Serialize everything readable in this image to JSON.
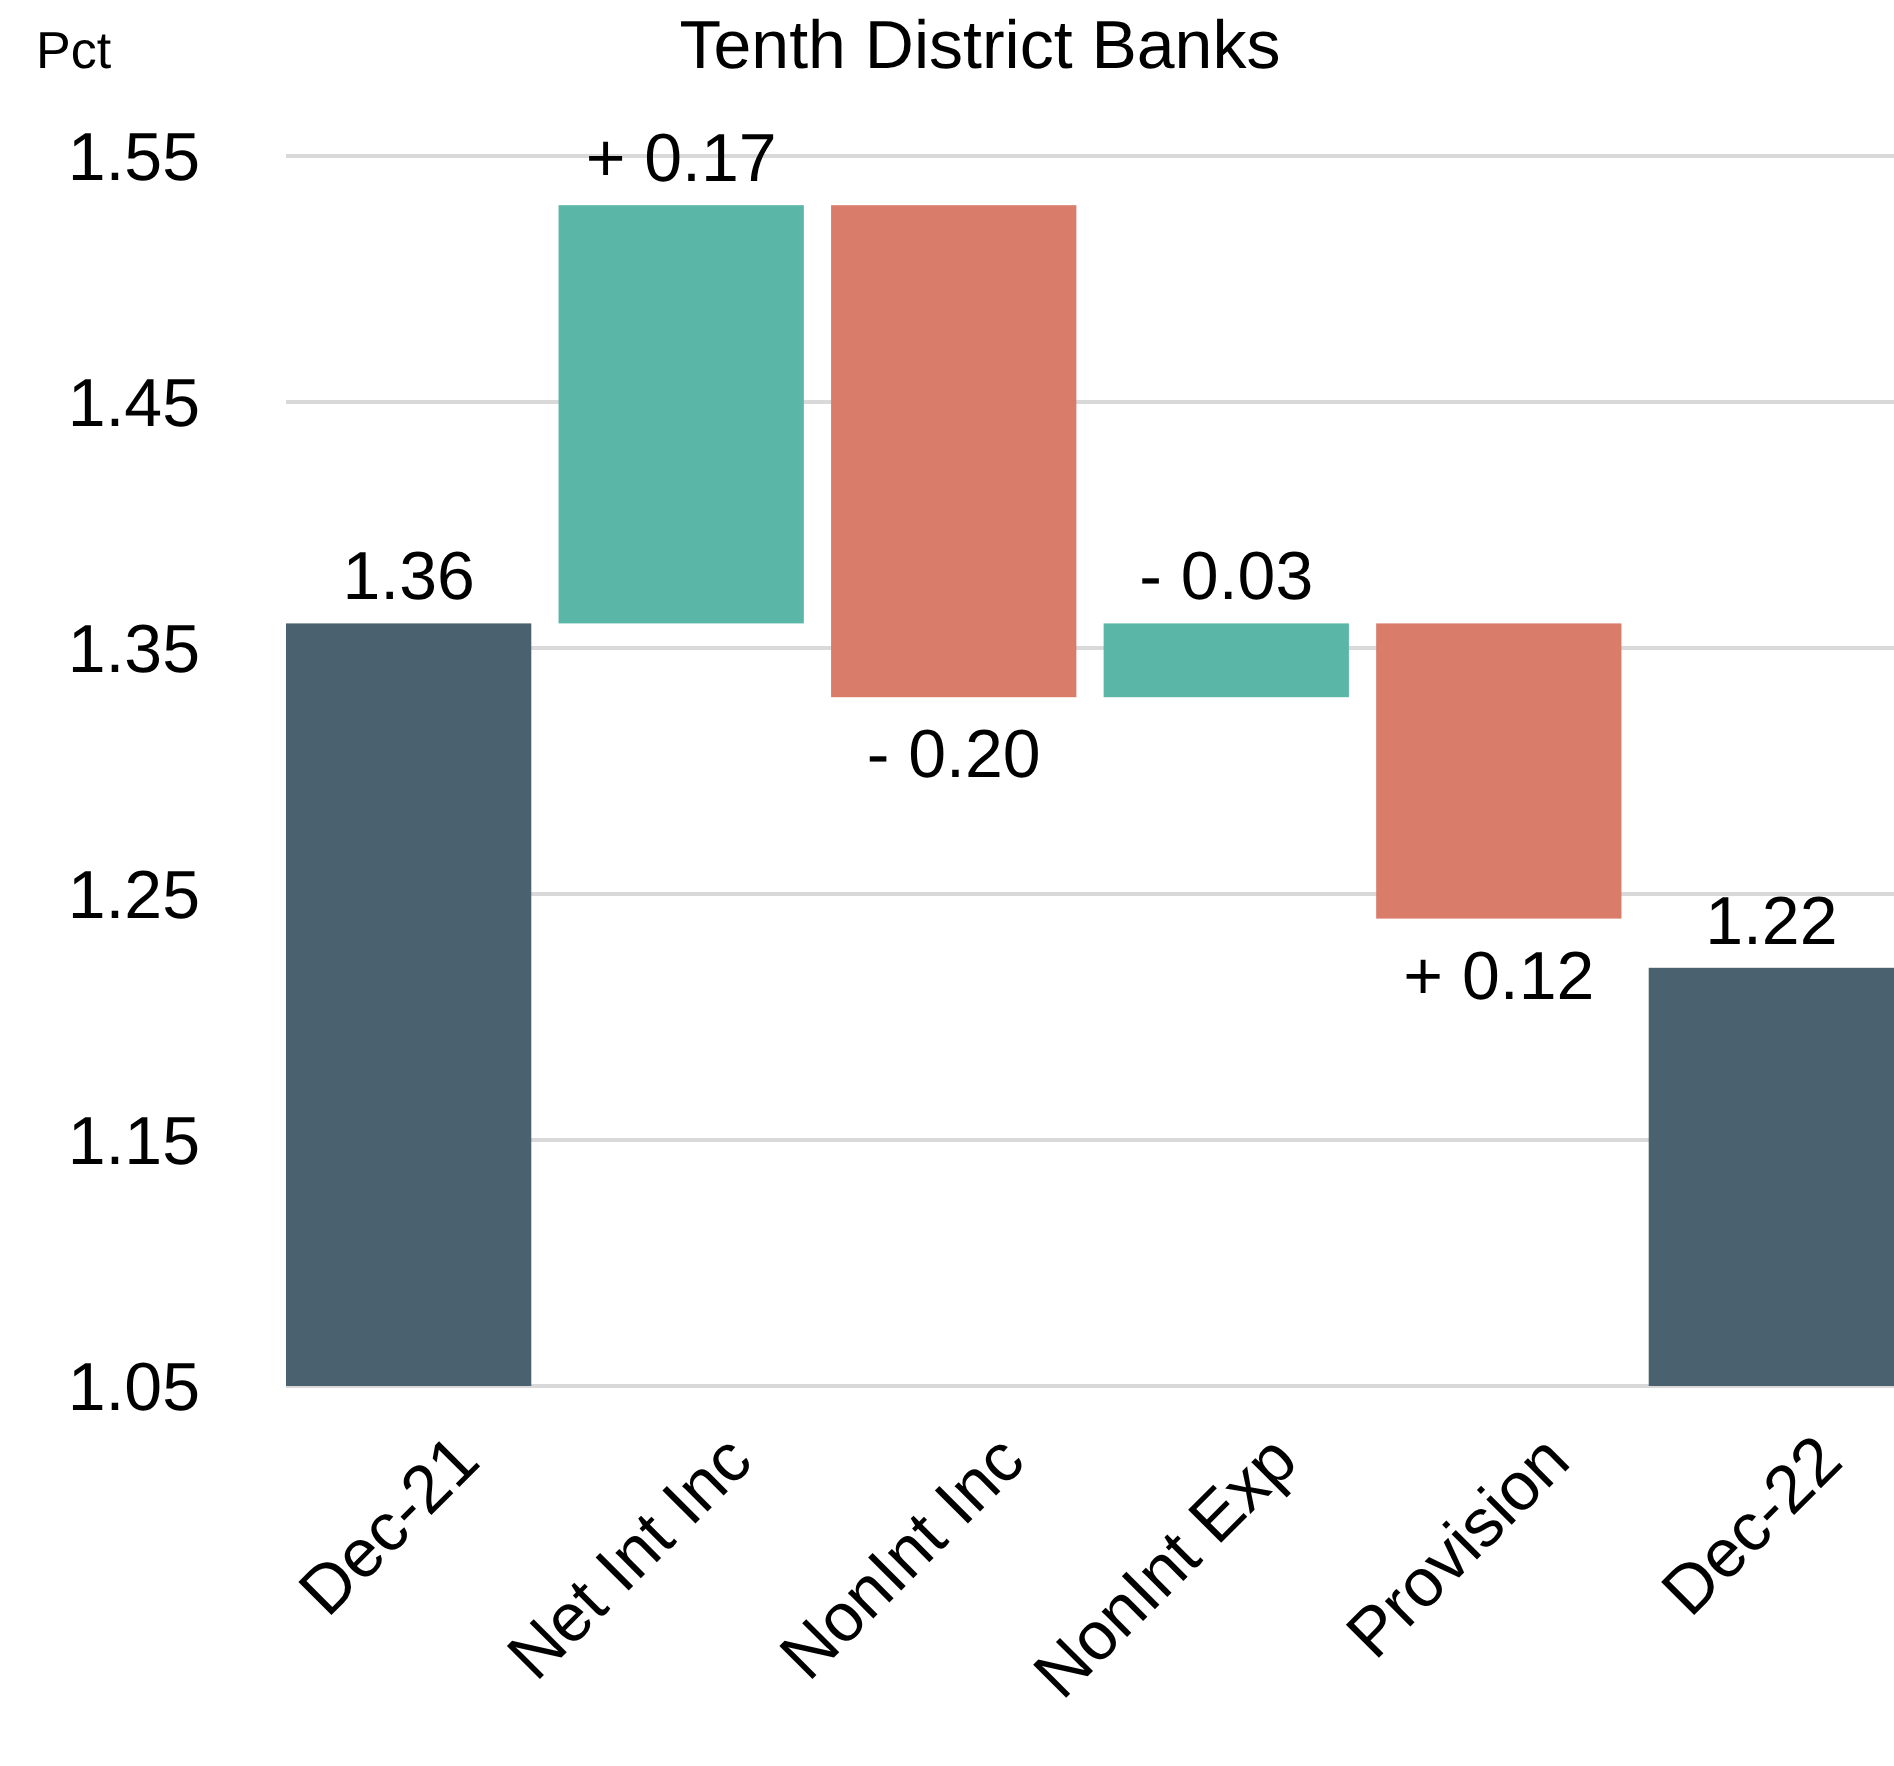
{
  "chart_data": {
    "type": "bar",
    "title": "Tenth District Banks",
    "ylabel": "Pct",
    "categories": [
      "Dec-21",
      "Net Int Inc",
      "NonInt Inc",
      "NonInt Exp",
      "Provision",
      "Dec-22"
    ],
    "values": [
      1.36,
      0.17,
      -0.2,
      -0.03,
      0.12,
      1.22
    ],
    "base": [
      null,
      1.36,
      1.53,
      1.36,
      1.24,
      null
    ],
    "colors": [
      "#4a6270",
      "#5ab6a6",
      "#d97d6a",
      "#5ab6a6",
      "#d97d6a",
      "#4a6270"
    ],
    "value_labels": [
      "1.36",
      "+ 0.17",
      "- 0.20",
      "- 0.03",
      "+ 0.12",
      "1.22"
    ],
    "ylim": [
      1.05,
      1.55
    ],
    "yticks": [
      1.05,
      1.15,
      1.25,
      1.35,
      1.45,
      1.55
    ],
    "grid": "y"
  }
}
